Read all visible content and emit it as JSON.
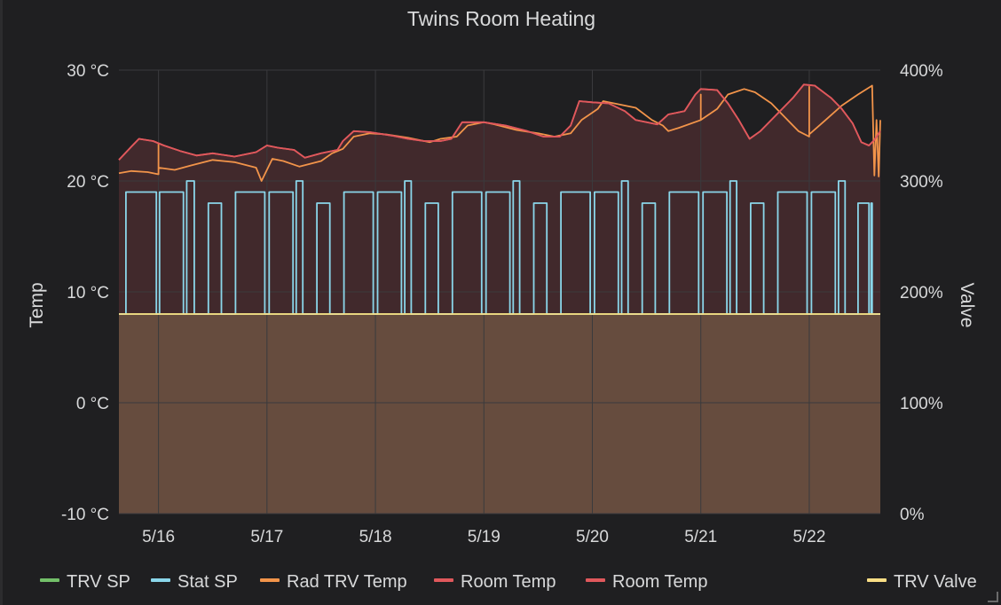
{
  "chart_data": {
    "type": "line",
    "title": "Twins Room Heating",
    "ylabel_left": "Temp",
    "ylabel_right": "Valve",
    "x_ticks": [
      "5/16",
      "5/17",
      "5/18",
      "5/19",
      "5/20",
      "5/21",
      "5/22"
    ],
    "x_range": [
      5.635,
      12.655
    ],
    "y_left_ticks": [
      "30 °C",
      "20 °C",
      "10 °C",
      "0 °C",
      "-10 °C"
    ],
    "y_left_range": [
      -10,
      30
    ],
    "y_right_ticks": [
      "400%",
      "300%",
      "200%",
      "100%",
      "0%"
    ],
    "y_right_range": [
      0,
      400
    ],
    "grid": true,
    "legend_position": "bottom",
    "series": [
      {
        "name": "TRV SP",
        "axis": "left",
        "color": "#73bf69",
        "fill": false,
        "points": [
          [
            5.635,
            8
          ],
          [
            12.655,
            8
          ]
        ]
      },
      {
        "name": "Stat SP",
        "axis": "left",
        "color": "#8ad6ea",
        "fill": false,
        "points": [
          [
            5.635,
            8
          ],
          [
            5.7,
            8
          ],
          [
            5.7,
            19
          ],
          [
            5.98,
            19
          ],
          [
            5.98,
            8
          ],
          [
            6.01,
            8
          ],
          [
            6.01,
            19
          ],
          [
            6.23,
            19
          ],
          [
            6.23,
            8
          ],
          [
            6.26,
            8
          ],
          [
            6.26,
            20
          ],
          [
            6.33,
            20
          ],
          [
            6.33,
            8
          ],
          [
            6.46,
            8
          ],
          [
            6.46,
            18
          ],
          [
            6.58,
            18
          ],
          [
            6.58,
            8
          ],
          [
            6.71,
            8
          ],
          [
            6.71,
            19
          ],
          [
            6.98,
            19
          ],
          [
            6.98,
            8
          ],
          [
            7.02,
            8
          ],
          [
            7.02,
            19
          ],
          [
            7.24,
            19
          ],
          [
            7.24,
            8
          ],
          [
            7.27,
            8
          ],
          [
            7.27,
            20
          ],
          [
            7.33,
            20
          ],
          [
            7.33,
            8
          ],
          [
            7.46,
            8
          ],
          [
            7.46,
            18
          ],
          [
            7.58,
            18
          ],
          [
            7.58,
            8
          ],
          [
            7.71,
            8
          ],
          [
            7.71,
            19
          ],
          [
            7.98,
            19
          ],
          [
            7.98,
            8
          ],
          [
            8.02,
            8
          ],
          [
            8.02,
            19
          ],
          [
            8.24,
            19
          ],
          [
            8.24,
            8
          ],
          [
            8.27,
            8
          ],
          [
            8.27,
            20
          ],
          [
            8.33,
            20
          ],
          [
            8.33,
            8
          ],
          [
            8.46,
            8
          ],
          [
            8.46,
            18
          ],
          [
            8.58,
            18
          ],
          [
            8.58,
            8
          ],
          [
            8.71,
            8
          ],
          [
            8.71,
            19
          ],
          [
            8.98,
            19
          ],
          [
            8.98,
            8
          ],
          [
            9.02,
            8
          ],
          [
            9.02,
            19
          ],
          [
            9.24,
            19
          ],
          [
            9.24,
            8
          ],
          [
            9.27,
            8
          ],
          [
            9.27,
            20
          ],
          [
            9.33,
            20
          ],
          [
            9.33,
            8
          ],
          [
            9.46,
            8
          ],
          [
            9.46,
            18
          ],
          [
            9.58,
            18
          ],
          [
            9.58,
            8
          ],
          [
            9.71,
            8
          ],
          [
            9.71,
            19
          ],
          [
            9.98,
            19
          ],
          [
            9.98,
            8
          ],
          [
            10.02,
            8
          ],
          [
            10.02,
            19
          ],
          [
            10.24,
            19
          ],
          [
            10.24,
            8
          ],
          [
            10.27,
            8
          ],
          [
            10.27,
            20
          ],
          [
            10.33,
            20
          ],
          [
            10.33,
            8
          ],
          [
            10.46,
            8
          ],
          [
            10.46,
            18
          ],
          [
            10.58,
            18
          ],
          [
            10.58,
            8
          ],
          [
            10.71,
            8
          ],
          [
            10.71,
            19
          ],
          [
            10.98,
            19
          ],
          [
            10.98,
            8
          ],
          [
            11.02,
            8
          ],
          [
            11.02,
            19
          ],
          [
            11.24,
            19
          ],
          [
            11.24,
            8
          ],
          [
            11.27,
            8
          ],
          [
            11.27,
            20
          ],
          [
            11.33,
            20
          ],
          [
            11.33,
            8
          ],
          [
            11.46,
            8
          ],
          [
            11.46,
            18
          ],
          [
            11.58,
            18
          ],
          [
            11.58,
            8
          ],
          [
            11.71,
            8
          ],
          [
            11.71,
            19
          ],
          [
            11.98,
            19
          ],
          [
            11.98,
            8
          ],
          [
            12.02,
            8
          ],
          [
            12.02,
            19
          ],
          [
            12.24,
            19
          ],
          [
            12.24,
            8
          ],
          [
            12.27,
            8
          ],
          [
            12.27,
            20
          ],
          [
            12.33,
            20
          ],
          [
            12.33,
            8
          ],
          [
            12.45,
            8
          ],
          [
            12.45,
            18
          ],
          [
            12.55,
            18
          ],
          [
            12.55,
            8
          ],
          [
            12.57,
            8
          ],
          [
            12.57,
            18
          ],
          [
            12.58,
            18
          ],
          [
            12.58,
            8
          ],
          [
            12.655,
            8
          ]
        ]
      },
      {
        "name": "Rad TRV Temp",
        "axis": "left",
        "color": "#f2944a",
        "fill": false,
        "points": [
          [
            5.635,
            20.7
          ],
          [
            5.75,
            20.9
          ],
          [
            5.9,
            20.8
          ],
          [
            6.0,
            20.6
          ],
          [
            6.0,
            23.4
          ],
          [
            6.0,
            21.2
          ],
          [
            6.15,
            21.0
          ],
          [
            6.3,
            21.4
          ],
          [
            6.5,
            21.9
          ],
          [
            6.7,
            21.7
          ],
          [
            6.9,
            21.2
          ],
          [
            6.95,
            20.0
          ],
          [
            7.05,
            22.0
          ],
          [
            7.15,
            21.8
          ],
          [
            7.3,
            21.3
          ],
          [
            7.5,
            21.8
          ],
          [
            7.6,
            22.5
          ],
          [
            7.7,
            22.9
          ],
          [
            7.8,
            24.0
          ],
          [
            7.95,
            24.3
          ],
          [
            8.1,
            24.2
          ],
          [
            8.3,
            23.9
          ],
          [
            8.5,
            23.5
          ],
          [
            8.6,
            23.8
          ],
          [
            8.75,
            24.0
          ],
          [
            8.85,
            25.0
          ],
          [
            9.0,
            25.3
          ],
          [
            9.1,
            25.1
          ],
          [
            9.3,
            24.6
          ],
          [
            9.5,
            24.3
          ],
          [
            9.65,
            24.0
          ],
          [
            9.8,
            24.3
          ],
          [
            9.9,
            25.5
          ],
          [
            10.05,
            26.5
          ],
          [
            10.1,
            27.2
          ],
          [
            10.2,
            27.0
          ],
          [
            10.4,
            26.6
          ],
          [
            10.55,
            25.5
          ],
          [
            10.65,
            25.0
          ],
          [
            10.7,
            24.5
          ],
          [
            10.8,
            24.8
          ],
          [
            11.0,
            25.5
          ],
          [
            11.0,
            27.8
          ],
          [
            11.0,
            25.5
          ],
          [
            11.15,
            26.5
          ],
          [
            11.25,
            27.8
          ],
          [
            11.4,
            28.3
          ],
          [
            11.5,
            28.0
          ],
          [
            11.65,
            27.0
          ],
          [
            11.8,
            25.5
          ],
          [
            11.9,
            24.5
          ],
          [
            12.0,
            24.0
          ],
          [
            12.0,
            28.5
          ],
          [
            12.0,
            24.2
          ],
          [
            12.15,
            25.5
          ],
          [
            12.3,
            26.8
          ],
          [
            12.45,
            27.8
          ],
          [
            12.58,
            28.6
          ],
          [
            12.6,
            20.5
          ],
          [
            12.62,
            25.5
          ],
          [
            12.64,
            20.4
          ],
          [
            12.655,
            25.5
          ]
        ]
      },
      {
        "name": "Room Temp",
        "axis": "left",
        "color": "#e0585c",
        "fill": true,
        "points": [
          [
            5.635,
            21.9
          ],
          [
            5.75,
            23.1
          ],
          [
            5.82,
            23.8
          ],
          [
            5.95,
            23.6
          ],
          [
            6.05,
            23.2
          ],
          [
            6.2,
            22.7
          ],
          [
            6.35,
            22.3
          ],
          [
            6.5,
            22.5
          ],
          [
            6.7,
            22.2
          ],
          [
            6.9,
            22.6
          ],
          [
            7.0,
            23.2
          ],
          [
            7.1,
            23.0
          ],
          [
            7.25,
            22.8
          ],
          [
            7.35,
            22.1
          ],
          [
            7.5,
            22.5
          ],
          [
            7.65,
            22.8
          ],
          [
            7.7,
            23.6
          ],
          [
            7.8,
            24.5
          ],
          [
            7.95,
            24.4
          ],
          [
            8.15,
            24.1
          ],
          [
            8.3,
            23.8
          ],
          [
            8.45,
            23.6
          ],
          [
            8.6,
            23.6
          ],
          [
            8.7,
            23.8
          ],
          [
            8.8,
            25.3
          ],
          [
            9.0,
            25.3
          ],
          [
            9.2,
            25.0
          ],
          [
            9.4,
            24.5
          ],
          [
            9.55,
            24.0
          ],
          [
            9.7,
            24.0
          ],
          [
            9.8,
            25.0
          ],
          [
            9.88,
            27.2
          ],
          [
            10.0,
            27.1
          ],
          [
            10.15,
            27.0
          ],
          [
            10.3,
            26.3
          ],
          [
            10.4,
            25.5
          ],
          [
            10.6,
            25.1
          ],
          [
            10.7,
            26.0
          ],
          [
            10.85,
            26.3
          ],
          [
            10.95,
            27.8
          ],
          [
            11.0,
            28.3
          ],
          [
            11.15,
            28.2
          ],
          [
            11.25,
            27.0
          ],
          [
            11.35,
            25.5
          ],
          [
            11.45,
            23.8
          ],
          [
            11.55,
            24.5
          ],
          [
            11.7,
            26.0
          ],
          [
            11.85,
            27.5
          ],
          [
            11.95,
            28.7
          ],
          [
            12.05,
            28.6
          ],
          [
            12.2,
            27.5
          ],
          [
            12.3,
            26.5
          ],
          [
            12.4,
            25.2
          ],
          [
            12.48,
            23.5
          ],
          [
            12.55,
            23.2
          ],
          [
            12.6,
            23.7
          ],
          [
            12.655,
            24.5
          ]
        ]
      },
      {
        "name": "Room Temp",
        "axis": "left",
        "color": "#e0585c",
        "fill": false,
        "points": [
          [
            5.635,
            21.9
          ],
          [
            5.75,
            23.1
          ],
          [
            5.82,
            23.8
          ],
          [
            5.95,
            23.6
          ],
          [
            6.05,
            23.2
          ],
          [
            6.2,
            22.7
          ],
          [
            6.35,
            22.3
          ],
          [
            6.5,
            22.5
          ],
          [
            6.7,
            22.2
          ],
          [
            6.9,
            22.6
          ],
          [
            7.0,
            23.2
          ],
          [
            7.1,
            23.0
          ],
          [
            7.25,
            22.8
          ],
          [
            7.35,
            22.1
          ],
          [
            7.5,
            22.5
          ],
          [
            7.65,
            22.8
          ],
          [
            7.7,
            23.6
          ],
          [
            7.8,
            24.5
          ],
          [
            7.95,
            24.4
          ],
          [
            8.15,
            24.1
          ],
          [
            8.3,
            23.8
          ],
          [
            8.45,
            23.6
          ],
          [
            8.6,
            23.6
          ],
          [
            8.7,
            23.8
          ],
          [
            8.8,
            25.3
          ],
          [
            9.0,
            25.3
          ],
          [
            9.2,
            25.0
          ],
          [
            9.4,
            24.5
          ],
          [
            9.55,
            24.0
          ],
          [
            9.7,
            24.0
          ],
          [
            9.8,
            25.0
          ],
          [
            9.88,
            27.2
          ],
          [
            10.0,
            27.1
          ],
          [
            10.15,
            27.0
          ],
          [
            10.3,
            26.3
          ],
          [
            10.4,
            25.5
          ],
          [
            10.6,
            25.1
          ],
          [
            10.7,
            26.0
          ],
          [
            10.85,
            26.3
          ],
          [
            10.95,
            27.8
          ],
          [
            11.0,
            28.3
          ],
          [
            11.15,
            28.2
          ],
          [
            11.25,
            27.0
          ],
          [
            11.35,
            25.5
          ],
          [
            11.45,
            23.8
          ],
          [
            11.55,
            24.5
          ],
          [
            11.7,
            26.0
          ],
          [
            11.85,
            27.5
          ],
          [
            11.95,
            28.7
          ],
          [
            12.05,
            28.6
          ],
          [
            12.2,
            27.5
          ],
          [
            12.3,
            26.5
          ],
          [
            12.4,
            25.2
          ],
          [
            12.48,
            23.5
          ],
          [
            12.55,
            23.2
          ],
          [
            12.6,
            23.7
          ],
          [
            12.655,
            24.5
          ]
        ]
      },
      {
        "name": "TRV Valve",
        "axis": "right",
        "color": "#fade85",
        "fill": true,
        "points": [
          [
            5.635,
            180
          ],
          [
            12.655,
            180
          ]
        ]
      }
    ]
  }
}
